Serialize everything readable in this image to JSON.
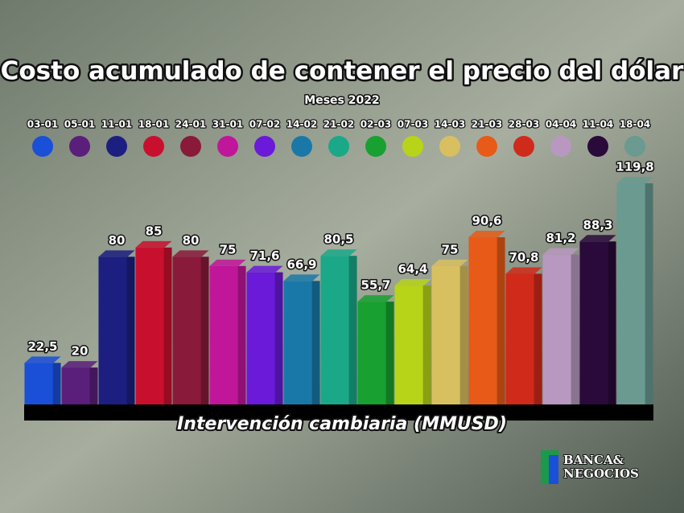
{
  "chart_data": {
    "type": "bar",
    "title": "Costo acumulado de contener el precio del dólar",
    "subtitle": "Meses 2022",
    "x_label": "Intervención cambiaria (MMUSD)",
    "categories": [
      "03-01",
      "05-01",
      "11-01",
      "18-01",
      "24-01",
      "31-01",
      "07-02",
      "14-02",
      "21-02",
      "02-03",
      "07-03",
      "14-03",
      "21-03",
      "28-03",
      "04-04",
      "11-04",
      "18-04"
    ],
    "values": [
      22.5,
      20,
      80,
      85,
      80,
      75,
      71.6,
      66.9,
      80.5,
      55.7,
      64.4,
      75,
      90.6,
      70.8,
      81.2,
      88.3,
      119.8
    ],
    "value_labels": [
      "22,5",
      "20",
      "80",
      "85",
      "80",
      "75",
      "71,6",
      "66,9",
      "80,5",
      "55,7",
      "64,4",
      "75",
      "90,6",
      "70,8",
      "81,2",
      "88,3",
      "119,8"
    ],
    "colors": [
      "#1a4fd8",
      "#5a1f7a",
      "#1c1f80",
      "#c8102e",
      "#8a1a3a",
      "#c0169a",
      "#6a1ad8",
      "#1a78a8",
      "#1aa888",
      "#18a030",
      "#b8d418",
      "#d8c060",
      "#e85a18",
      "#d02a1a",
      "#b898c0",
      "#2a0a3a",
      "#6a9a90"
    ]
  },
  "logo": {
    "line1": "BANCA&",
    "line2": "NEGOCIOS"
  }
}
